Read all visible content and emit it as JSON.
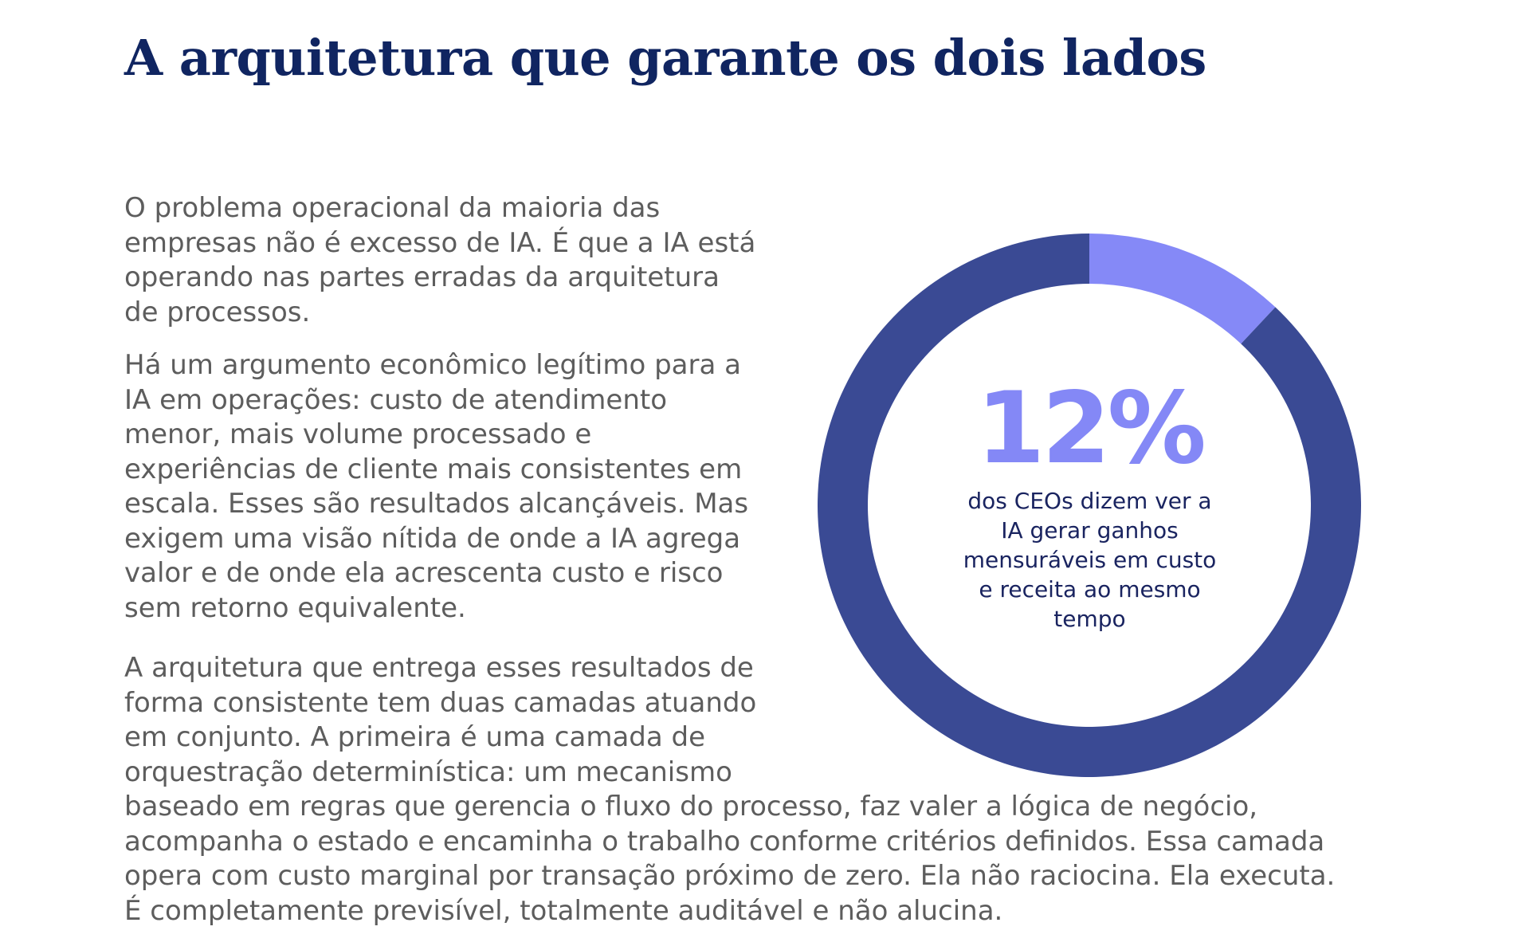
{
  "title": "A arquitetura que garante os dois lados",
  "paragraphs": {
    "p1": [
      "O problema operacional da maioria das",
      "empresas não é excesso de IA. É que a IA está",
      "operando nas partes erradas da arquitetura",
      "de processos."
    ],
    "p2": [
      "Há um argumento econômico legítimo para a",
      "IA em operações: custo de atendimento",
      "menor, mais volume processado e",
      "experiências de cliente mais consistentes em",
      "escala. Esses são resultados alcançáveis. Mas",
      "exigem uma visão nítida de onde a IA agrega",
      "valor e de onde ela acrescenta custo e risco",
      "sem retorno equivalente."
    ],
    "p3": [
      "A arquitetura que entrega esses resultados de",
      "forma consistente tem duas camadas atuando",
      "em conjunto. A primeira é uma camada de",
      "orquestração determinística: um mecanismo",
      "baseado em regras que gerencia o fluxo do processo, faz valer a lógica de negócio,",
      "acompanha o estado e encaminha o trabalho conforme critérios definidos. Essa camada",
      "opera com custo marginal por transação próximo de zero. Ela não raciocina. Ela executa.",
      "É completamente previsível, totalmente auditável e não alucina."
    ]
  },
  "stat": {
    "value": "12%",
    "caption": [
      "dos CEOs dizem ver a",
      "IA gerar ganhos",
      "mensuráveis em custo",
      "e receita ao mesmo",
      "tempo"
    ]
  },
  "chart_data": {
    "type": "pie",
    "style": "donut",
    "values": [
      12,
      88
    ],
    "highlight_index": 0,
    "colors": [
      "#8589f7",
      "#3a4a94"
    ]
  }
}
